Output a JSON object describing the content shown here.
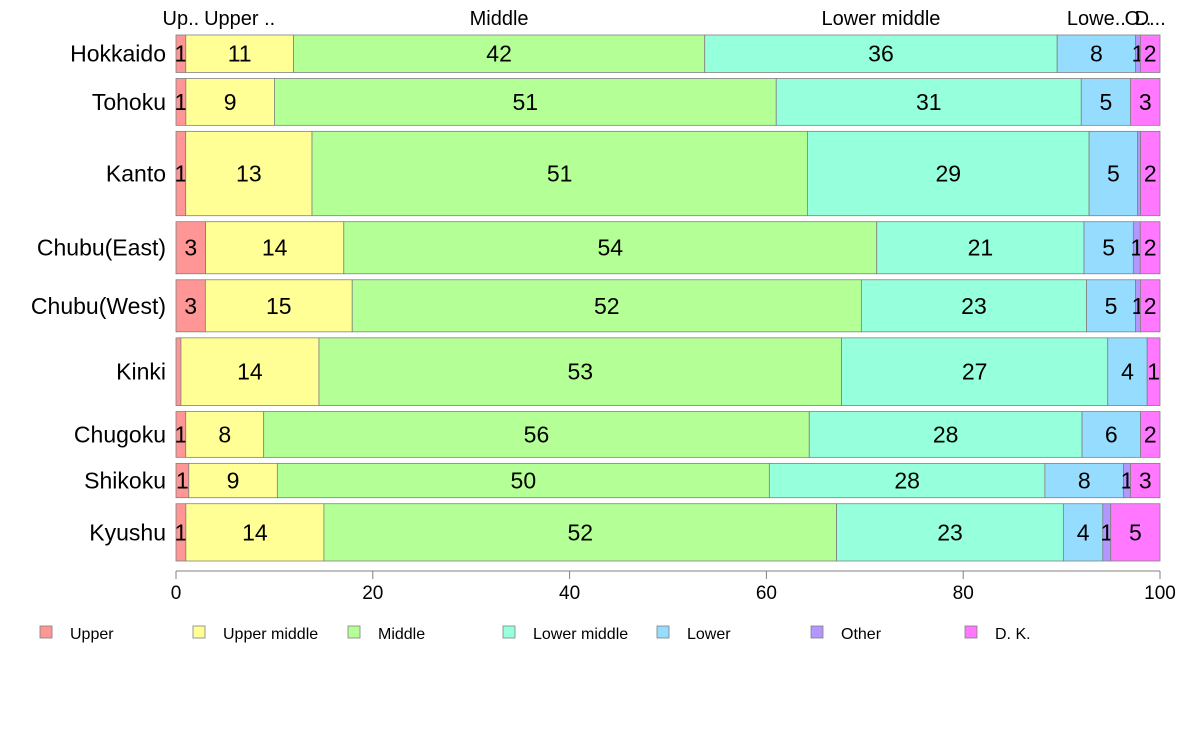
{
  "chart_data": {
    "type": "bar",
    "orientation": "horizontal",
    "stacked": true,
    "categories": [
      "Hokkaido",
      "Tohoku",
      "Kanto",
      "Chubu(East)",
      "Chubu(West)",
      "Kinki",
      "Chugoku",
      "Shikoku",
      "Kyushu"
    ],
    "category_widths": [
      36,
      45,
      81,
      50,
      50,
      65,
      44,
      33,
      55
    ],
    "series": [
      {
        "name": "Upper",
        "color": "#FF9696",
        "values": [
          1,
          1,
          1,
          3,
          3,
          0.5,
          1,
          1.3,
          1
        ]
      },
      {
        "name": "Upper middle",
        "color": "#FFFF96",
        "values": [
          11,
          9,
          13,
          14,
          15,
          14,
          8,
          9,
          14
        ]
      },
      {
        "name": "Middle",
        "color": "#B4FF96",
        "values": [
          42,
          51,
          51,
          54,
          52,
          53,
          56,
          50,
          52
        ]
      },
      {
        "name": "Lower middle",
        "color": "#96FFDC",
        "values": [
          36,
          31,
          29,
          21,
          23,
          27,
          28,
          28,
          23
        ]
      },
      {
        "name": "Lower",
        "color": "#96DCFF",
        "values": [
          8,
          5,
          5,
          5,
          5,
          4,
          6,
          8,
          4
        ]
      },
      {
        "name": "Other",
        "color": "#B496FF",
        "values": [
          0.5,
          0,
          0.3,
          0.7,
          0.5,
          0,
          0,
          0.7,
          0.8
        ]
      },
      {
        "name": "D. K.",
        "color": "#FF78FF",
        "values": [
          2,
          3,
          2,
          2,
          2,
          1.3,
          2,
          3,
          5
        ]
      }
    ],
    "labels": [
      [
        "1",
        "11",
        "42",
        "36",
        "8",
        "1",
        "2"
      ],
      [
        "1",
        "9",
        "51",
        "31",
        "5",
        "",
        "3"
      ],
      [
        "1",
        "13",
        "51",
        "29",
        "5",
        "",
        "2"
      ],
      [
        "3",
        "14",
        "54",
        "21",
        "5",
        "1",
        "2"
      ],
      [
        "3",
        "15",
        "52",
        "23",
        "5",
        "1",
        "2"
      ],
      [
        "",
        "14",
        "53",
        "27",
        "4",
        "",
        "1"
      ],
      [
        "1",
        "8",
        "56",
        "28",
        "6",
        "",
        "2"
      ],
      [
        "1",
        "9",
        "50",
        "28",
        "8",
        "1",
        "3"
      ],
      [
        "1",
        "14",
        "52",
        "23",
        "4",
        "1",
        "5"
      ]
    ],
    "top_labels": [
      "Up..",
      "Upper ..",
      "Middle",
      "Lower middle",
      "Lowe..",
      "O..",
      "D..."
    ],
    "xlim": [
      0,
      100
    ],
    "xticks": [
      0,
      20,
      40,
      60,
      80,
      100
    ],
    "legend": {
      "position": "bottom",
      "entries": [
        "Upper",
        "Upper middle",
        "Middle",
        "Lower middle",
        "Lower",
        "Other",
        "D. K."
      ]
    }
  }
}
